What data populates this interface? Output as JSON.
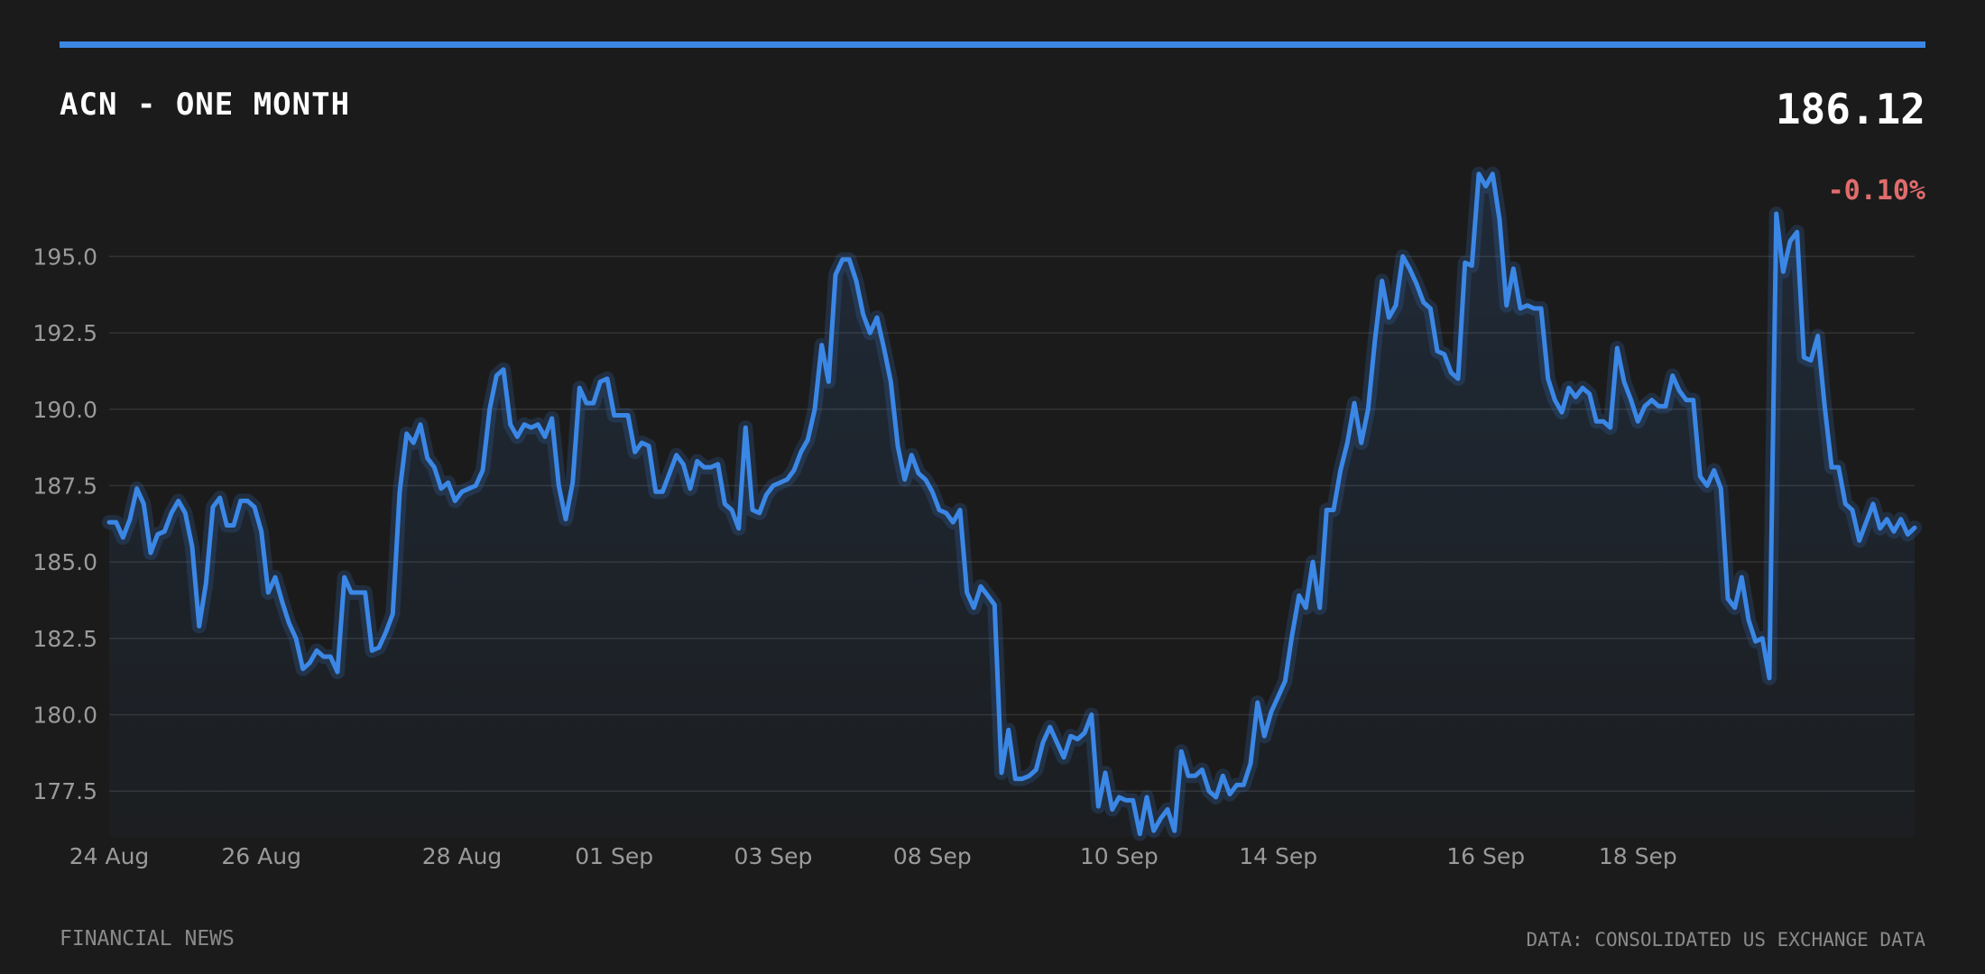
{
  "header": {
    "title": "ACN - ONE MONTH",
    "price": "186.12",
    "change": "-0.10%"
  },
  "footer": {
    "source_left": "FINANCIAL NEWS",
    "source_right": "DATA: CONSOLIDATED US EXCHANGE DATA"
  },
  "colors": {
    "line": "#3b87e6",
    "background": "#1b1b1b",
    "negative": "#e06c6c",
    "grid": "#333333"
  },
  "chart_data": {
    "type": "area",
    "title": "ACN - ONE MONTH",
    "xlabel": "",
    "ylabel": "",
    "ylim": [
      176.0,
      198.2
    ],
    "yticks": [
      177.5,
      180.0,
      182.5,
      185.0,
      187.5,
      190.0,
      192.5,
      195.0
    ],
    "ytick_labels": [
      "177.5",
      "180.0",
      "182.5",
      "185.0",
      "187.5",
      "190.0",
      "192.5",
      "195.0"
    ],
    "xticks": [
      {
        "label": "24 Aug",
        "index": 0
      },
      {
        "label": "26 Aug",
        "index": 22
      },
      {
        "label": "28 Aug",
        "index": 51
      },
      {
        "label": "01 Sep",
        "index": 73
      },
      {
        "label": "03 Sep",
        "index": 96
      },
      {
        "label": "08 Sep",
        "index": 119
      },
      {
        "label": "10 Sep",
        "index": 146
      },
      {
        "label": "14 Sep",
        "index": 169
      },
      {
        "label": "16 Sep",
        "index": 199
      },
      {
        "label": "18 Sep",
        "index": 221
      }
    ],
    "grid": true,
    "series": [
      {
        "values": [
          186.3,
          186.3,
          185.8,
          186.4,
          187.4,
          186.9,
          185.3,
          185.9,
          186.0,
          186.6,
          187.0,
          186.6,
          185.5,
          182.9,
          184.3,
          186.8,
          187.1,
          186.2,
          186.2,
          187.0,
          187.0,
          186.8,
          186.0,
          184.0,
          184.5,
          183.7,
          183.0,
          182.5,
          181.5,
          181.7,
          182.1,
          181.9,
          181.9,
          181.4,
          184.5,
          184.0,
          184.0,
          184.0,
          182.1,
          182.2,
          182.7,
          183.3,
          187.3,
          189.2,
          188.9,
          189.5,
          188.4,
          188.1,
          187.4,
          187.6,
          187.0,
          187.3,
          187.4,
          187.5,
          188.0,
          190.0,
          191.1,
          191.3,
          189.5,
          189.1,
          189.5,
          189.4,
          189.5,
          189.1,
          189.7,
          187.5,
          186.4,
          187.6,
          190.7,
          190.2,
          190.2,
          190.9,
          191.0,
          189.8,
          189.8,
          189.8,
          188.6,
          188.9,
          188.8,
          187.3,
          187.3,
          187.9,
          188.5,
          188.2,
          187.4,
          188.3,
          188.1,
          188.1,
          188.2,
          186.9,
          186.7,
          186.1,
          189.4,
          186.7,
          186.6,
          187.2,
          187.5,
          187.6,
          187.7,
          188.0,
          188.6,
          189.0,
          190.0,
          192.1,
          190.9,
          194.4,
          194.9,
          194.9,
          194.2,
          193.1,
          192.5,
          193.0,
          192.0,
          190.9,
          188.8,
          187.7,
          188.5,
          187.9,
          187.7,
          187.3,
          186.7,
          186.6,
          186.3,
          186.7,
          184.0,
          183.5,
          184.2,
          183.9,
          183.6,
          178.1,
          179.5,
          177.9,
          177.9,
          178.0,
          178.2,
          179.1,
          179.6,
          179.1,
          178.6,
          179.3,
          179.2,
          179.4,
          180.0,
          177.0,
          178.1,
          176.9,
          177.3,
          177.2,
          177.2,
          176.1,
          177.3,
          176.2,
          176.6,
          176.9,
          176.2,
          178.8,
          178.0,
          178.0,
          178.2,
          177.5,
          177.3,
          178.0,
          177.4,
          177.7,
          177.7,
          178.4,
          180.4,
          179.3,
          180.1,
          180.6,
          181.1,
          182.6,
          183.9,
          183.5,
          185.0,
          183.5,
          186.7,
          186.7,
          188.0,
          188.9,
          190.2,
          188.9,
          190.0,
          192.3,
          194.2,
          193.0,
          193.4,
          195.0,
          194.6,
          194.1,
          193.5,
          193.3,
          191.9,
          191.8,
          191.2,
          191.0,
          194.8,
          194.7,
          197.7,
          197.3,
          197.7,
          196.2,
          193.4,
          194.6,
          193.3,
          193.4,
          193.3,
          193.3,
          191.0,
          190.3,
          189.9,
          190.7,
          190.4,
          190.7,
          190.5,
          189.6,
          189.6,
          189.4,
          192.0,
          190.9,
          190.3,
          189.6,
          190.1,
          190.3,
          190.1,
          190.1,
          191.1,
          190.6,
          190.3,
          190.3,
          187.8,
          187.5,
          188.0,
          187.4,
          183.8,
          183.5,
          184.5,
          183.1,
          182.4,
          182.5,
          181.2,
          196.4,
          194.5,
          195.5,
          195.8,
          191.7,
          191.6,
          192.4,
          190.1,
          188.1,
          188.1,
          186.9,
          186.7,
          185.7,
          186.3,
          186.9,
          186.1,
          186.4,
          186.0,
          186.4,
          185.9,
          186.12
        ]
      }
    ]
  }
}
